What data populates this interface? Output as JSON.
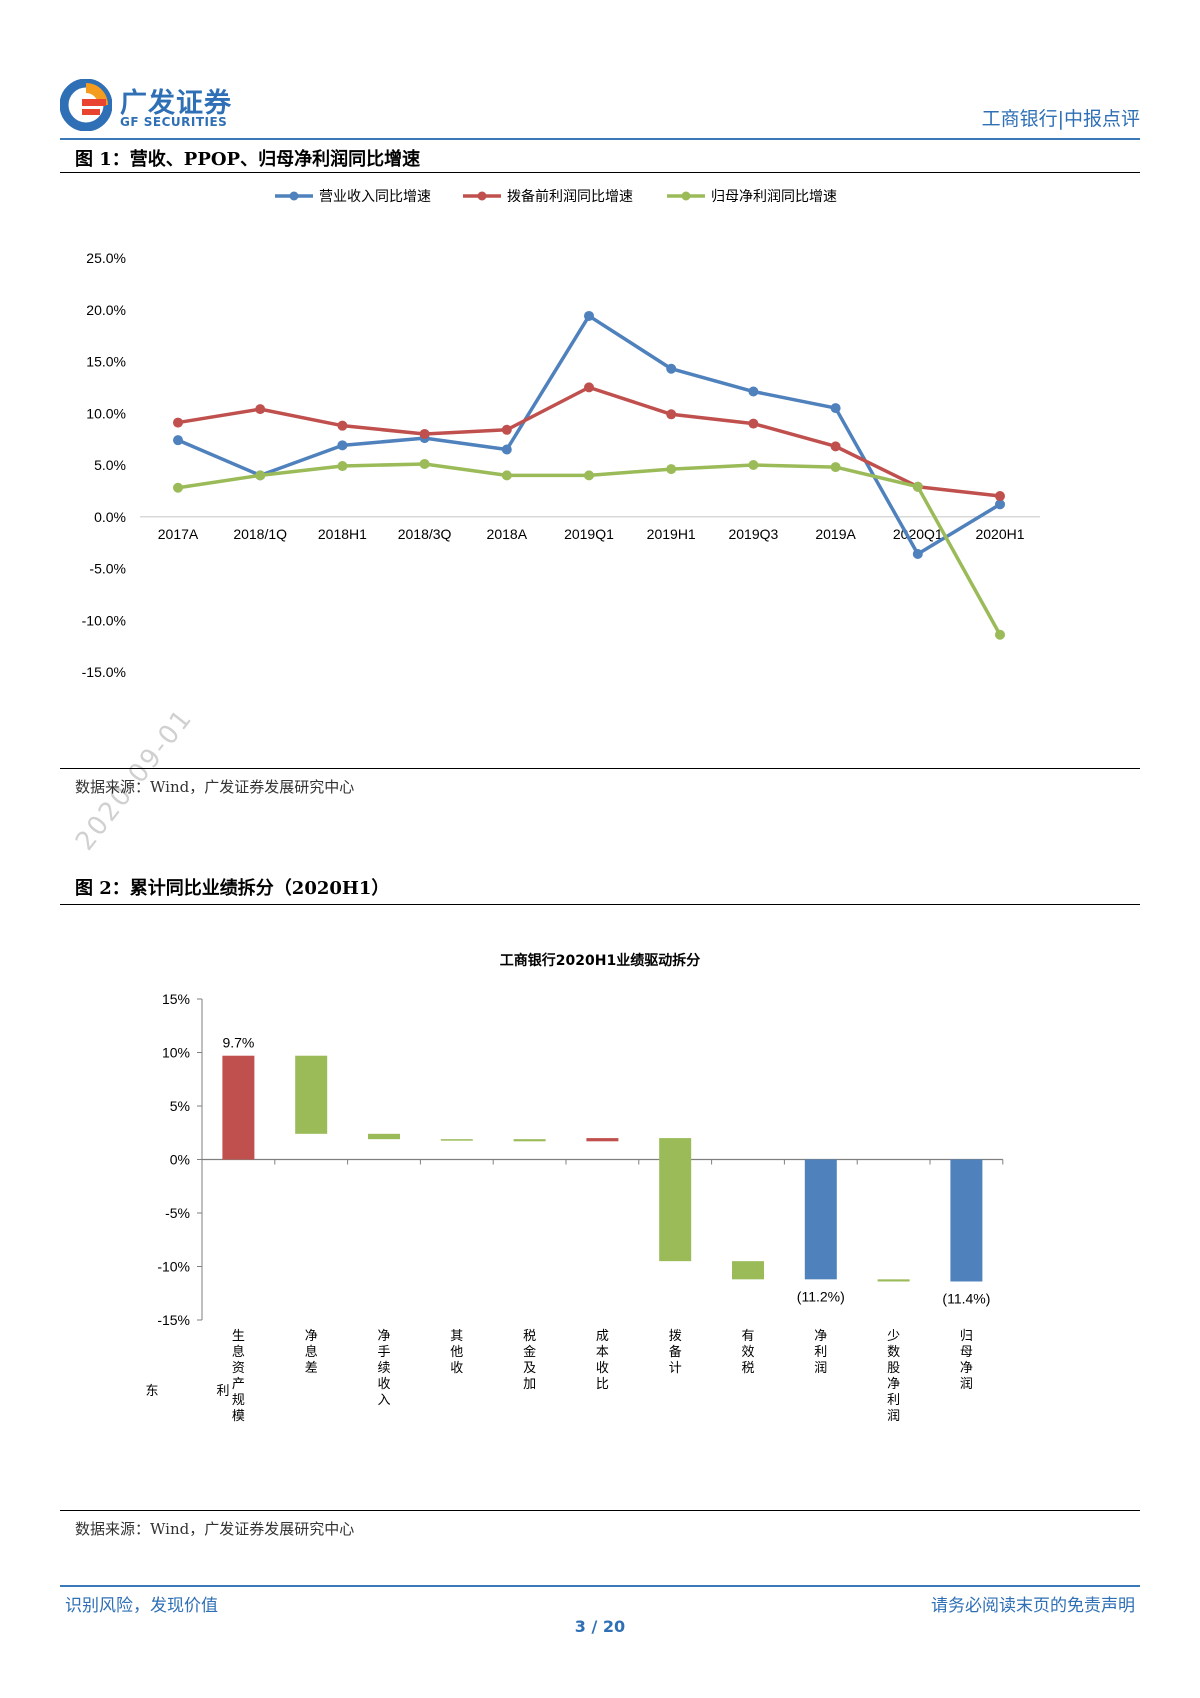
{
  "header": {
    "logo_cn": "广发证券",
    "logo_en": "GF SECURITIES",
    "report_tag": "工商银行|中报点评"
  },
  "watermark": "2020-09-01",
  "fig1": {
    "title": "图 1：营收、PPOP、归母净利润同比增速",
    "source": "数据来源：Wind，广发证券发展研究中心",
    "chart_data": {
      "type": "line",
      "categories": [
        "2017A",
        "2018/1Q",
        "2018H1",
        "2018/3Q",
        "2018A",
        "2019Q1",
        "2019H1",
        "2019Q3",
        "2019A",
        "2020Q1",
        "2020H1"
      ],
      "series": [
        {
          "name": "营业收入同比增速",
          "color": "#4f81bd",
          "values": [
            7.4,
            4.0,
            6.9,
            7.6,
            6.5,
            19.4,
            14.3,
            12.1,
            10.5,
            -3.6,
            1.2
          ]
        },
        {
          "name": "拨备前利润同比增速",
          "color": "#c0504d",
          "values": [
            9.1,
            10.4,
            8.8,
            8.0,
            8.4,
            12.5,
            9.9,
            9.0,
            6.8,
            2.9,
            2.0
          ]
        },
        {
          "name": "归母净利润同比增速",
          "color": "#9bbb59",
          "values": [
            2.8,
            4.0,
            4.9,
            5.1,
            4.0,
            4.0,
            4.6,
            5.0,
            4.8,
            2.9,
            -11.4
          ]
        }
      ],
      "yticks": [
        "25.0%",
        "20.0%",
        "15.0%",
        "10.0%",
        "5.0%",
        "0.0%",
        "-5.0%",
        "-10.0%",
        "-15.0%"
      ],
      "ylim": [
        -15,
        25
      ],
      "legend": "top"
    }
  },
  "fig2": {
    "title": "图 2：累计同比业绩拆分（2020H1）",
    "source": "数据来源：Wind，广发证券发展研究中心",
    "chart_data": {
      "type": "bar",
      "title": "工商银行2020H1业绩驱动拆分",
      "yticks": [
        "15%",
        "10%",
        "5%",
        "0%",
        "-5%",
        "-10%",
        "-15%"
      ],
      "ylim": [
        -15,
        15
      ],
      "bars": [
        {
          "label": "生息资产规模",
          "start": 0,
          "end": 9.7,
          "color": "#c0504d",
          "data_label": "9.7%"
        },
        {
          "label": "净息差",
          "start": 2.4,
          "end": 9.7,
          "color": "#9bbb59",
          "data_label": ""
        },
        {
          "label": "净手续收入",
          "start": 1.9,
          "end": 2.4,
          "color": "#9bbb59",
          "data_label": ""
        },
        {
          "label": "其他收",
          "start": 1.8,
          "end": 1.9,
          "color": "#9bbb59",
          "data_label": ""
        },
        {
          "label": "税金及加",
          "start": 1.7,
          "end": 1.9,
          "color": "#9bbb59",
          "data_label": ""
        },
        {
          "label": "成本收比",
          "start": 1.7,
          "end": 2.0,
          "color": "#c0504d",
          "data_label": ""
        },
        {
          "label": "拨备计",
          "start": -9.5,
          "end": 2.0,
          "color": "#9bbb59",
          "data_label": ""
        },
        {
          "label": "有效税",
          "start": -11.2,
          "end": -9.5,
          "color": "#9bbb59",
          "data_label": ""
        },
        {
          "label": "净利润",
          "start": 0,
          "end": -11.2,
          "color": "#4f81bd",
          "data_label": "(11.2%)"
        },
        {
          "label": "少数股净利润",
          "start": -11.2,
          "end": -11.4,
          "color": "#9bbb59",
          "data_label": ""
        },
        {
          "label": "归母净润",
          "start": 0,
          "end": -11.4,
          "color": "#4f81bd",
          "data_label": "(11.4%)"
        }
      ],
      "side_chars": [
        "东",
        "利"
      ]
    }
  },
  "footer": {
    "left": "识别风险，发现价值",
    "right": "请务必阅读末页的免责声明",
    "page": "3 / 20"
  }
}
